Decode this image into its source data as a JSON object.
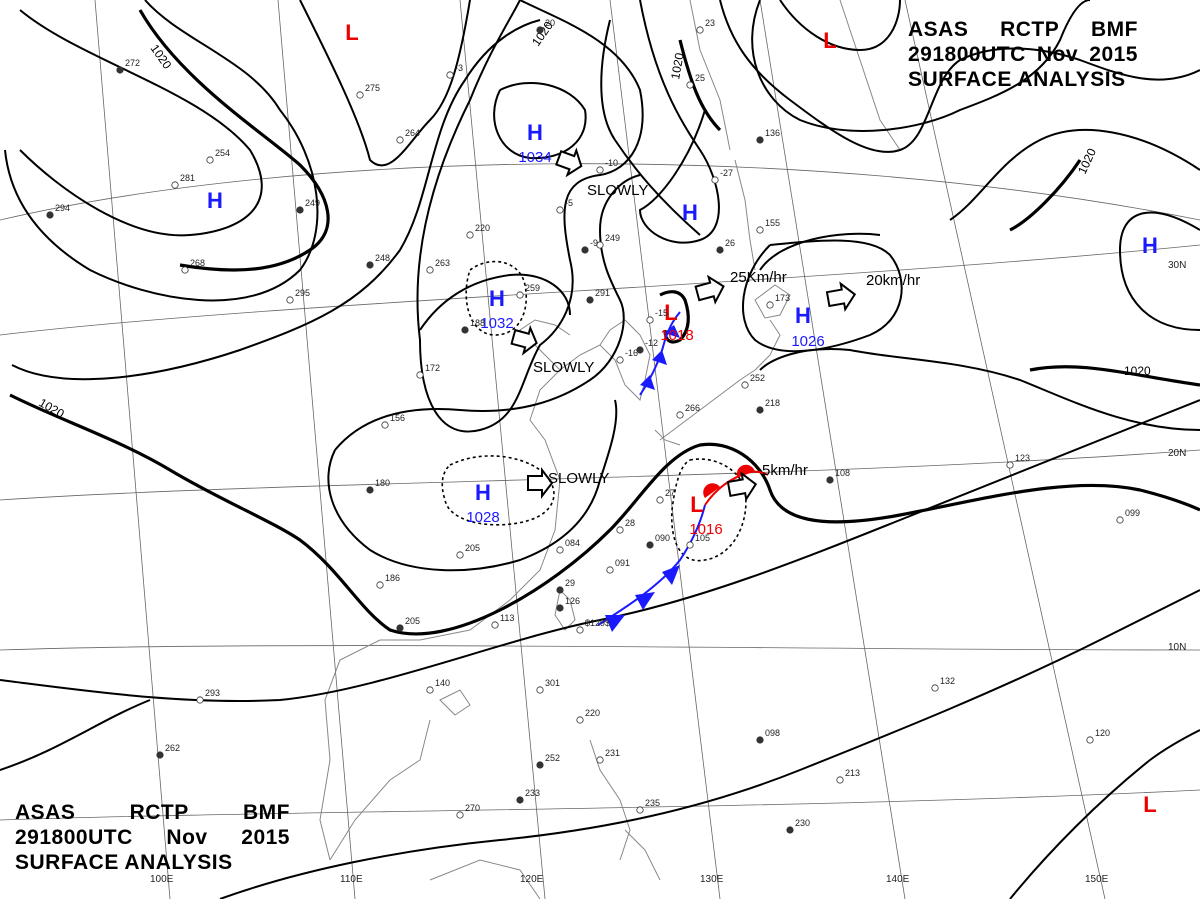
{
  "header": {
    "title_top": {
      "line1": [
        "ASAS",
        "RCTP",
        "BMF"
      ],
      "line2": [
        "291800UTC",
        "Nov",
        "2015"
      ],
      "line3": "SURFACE ANALYSIS"
    },
    "title_bottom": {
      "line1": [
        "ASAS",
        "RCTP",
        "BMF"
      ],
      "line2": [
        "291800UTC",
        "Nov",
        "2015"
      ],
      "line3": "SURFACE ANALYSIS"
    }
  },
  "colors": {
    "high": "#1a1aff",
    "low": "#ee0000",
    "cold_front": "#1a1aff",
    "warm_front": "#ee0000",
    "isobar": "#000000",
    "grid": "#666666",
    "coast": "#888888"
  },
  "systems": [
    {
      "type": "H",
      "label": "H",
      "pressure": "1034"
    },
    {
      "type": "H",
      "label": "H",
      "pressure": ""
    },
    {
      "type": "H",
      "label": "H",
      "pressure": "1032"
    },
    {
      "type": "H",
      "label": "H",
      "pressure": "1028"
    },
    {
      "type": "H",
      "label": "H",
      "pressure": "1026"
    },
    {
      "type": "H",
      "label": "H",
      "pressure": ""
    },
    {
      "type": "H",
      "label": "H",
      "pressure": ""
    },
    {
      "type": "L",
      "label": "L",
      "pressure": ""
    },
    {
      "type": "L",
      "label": "L",
      "pressure": ""
    },
    {
      "type": "L",
      "label": "L",
      "pressure": "1016"
    },
    {
      "type": "L",
      "label": "L",
      "pressure": "1018"
    },
    {
      "type": "L",
      "label": "L",
      "pressure": ""
    }
  ],
  "motions": [
    {
      "text": "SLOWLY"
    },
    {
      "text": "SLOWLY"
    },
    {
      "text": "SLOWLY"
    },
    {
      "text": "25Km/hr"
    },
    {
      "text": "20km/hr"
    },
    {
      "text": "5km/hr"
    }
  ],
  "isobar_labels": [
    "1020",
    "1020",
    "1020",
    "1020",
    "1020",
    "1020"
  ],
  "latitude_labels": [
    "30N",
    "20N",
    "10N"
  ],
  "longitude_labels": [
    "100E",
    "110E",
    "120E",
    "130E",
    "140E",
    "150E"
  ],
  "station_samples": [
    "272",
    "275",
    "264",
    "249",
    "254",
    "281",
    "294",
    "268",
    "295",
    "248",
    "263",
    "259",
    "291",
    "249",
    "220",
    "188",
    "156",
    "172",
    "180",
    "205",
    "186",
    "205",
    "140",
    "113",
    "126",
    "084",
    "091",
    "090",
    "105",
    "123",
    "108",
    "099",
    "132",
    "098",
    "120",
    "213",
    "230",
    "231",
    "235",
    "252",
    "220",
    "301",
    "233",
    "270",
    "293",
    "262",
    "266",
    "252",
    "218",
    "173",
    "155",
    "136",
    "-27",
    "-15",
    "-12",
    "-16",
    "-10",
    "-9",
    "-5",
    "-3",
    "20",
    "23",
    "25",
    "26",
    "27",
    "28",
    "29",
    "$129$"
  ]
}
